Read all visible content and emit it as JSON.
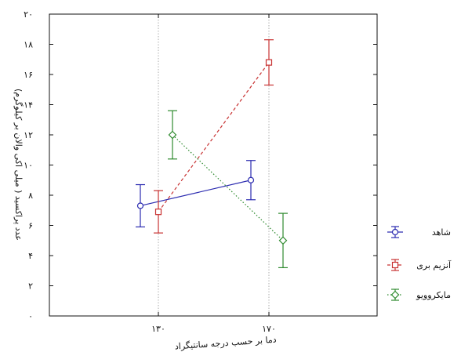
{
  "chart_data": {
    "type": "line",
    "xlabel": "دما بر حسب درجه سانتیگراد",
    "ylabel": "عدد پراکسید ( میلی اکی والان بر کیلوگرم)",
    "categories": [
      "۱۳۰",
      "۱۷۰"
    ],
    "ylim": [
      0,
      20
    ],
    "yticks": [
      0,
      2,
      4,
      6,
      8,
      10,
      12,
      14,
      16,
      18,
      20
    ],
    "ytick_labels": [
      "۰",
      "۲",
      "۴",
      "۶",
      "۸",
      "۱۰",
      "۱۲",
      "۱۴",
      "۱۶",
      "۱۸",
      "۲۰"
    ],
    "grid": true,
    "legend_position": "right",
    "series": [
      {
        "name": "شاهد",
        "color": "#2b2bb0",
        "marker": "circle",
        "line_style": "solid",
        "values": [
          7.3,
          9.0
        ],
        "errors": [
          1.4,
          1.3
        ]
      },
      {
        "name": "آنزیم بری",
        "color": "#c83232",
        "marker": "square",
        "line_style": "dashed",
        "values": [
          6.9,
          16.8
        ],
        "errors": [
          1.4,
          1.5
        ]
      },
      {
        "name": "مایکروویو",
        "color": "#2e8a2e",
        "marker": "diamond",
        "line_style": "dotted",
        "values": [
          12.0,
          5.0
        ],
        "errors": [
          1.6,
          1.8
        ]
      }
    ]
  }
}
